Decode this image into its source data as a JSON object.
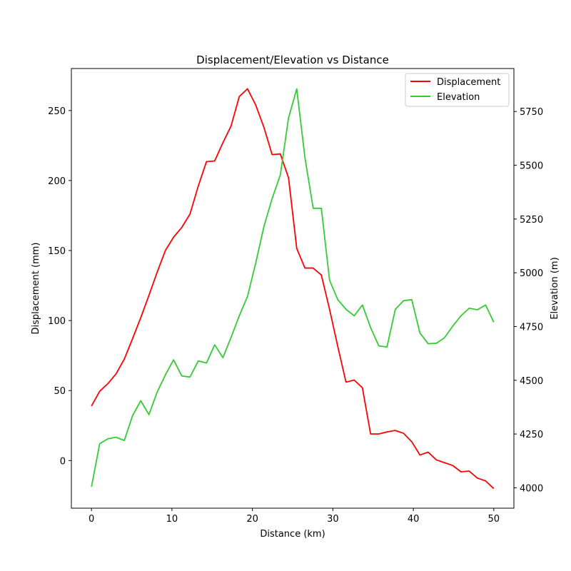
{
  "chart_data": {
    "type": "line",
    "title": "Displacement/Elevation vs Distance",
    "xlabel": "Distance (km)",
    "ylabel_left": "Displacement (mm)",
    "ylabel_right": "Elevation (m)",
    "xlim": [
      -2.5,
      52.5
    ],
    "ylim_left": [
      -34,
      280
    ],
    "ylim_right": [
      3905,
      5950
    ],
    "xticks": [
      0,
      10,
      20,
      30,
      40,
      50
    ],
    "yticks_left": [
      0,
      50,
      100,
      150,
      200,
      250
    ],
    "yticks_right": [
      4000,
      4250,
      4500,
      4750,
      5000,
      5250,
      5500,
      5750
    ],
    "grid": false,
    "legend_position": "top-right",
    "x": [
      0.0,
      1.02,
      2.04,
      3.06,
      4.08,
      5.1,
      6.12,
      7.14,
      8.16,
      9.18,
      10.2,
      11.22,
      12.24,
      13.27,
      14.29,
      15.31,
      16.33,
      17.35,
      18.37,
      19.39,
      20.41,
      21.43,
      22.45,
      23.47,
      24.49,
      25.51,
      26.53,
      27.55,
      28.57,
      29.59,
      30.61,
      31.63,
      32.65,
      33.67,
      34.69,
      35.71,
      36.73,
      37.76,
      38.78,
      39.8,
      40.82,
      41.84,
      42.86,
      43.88,
      44.9,
      45.92,
      46.94,
      47.96,
      48.98,
      50.0
    ],
    "series": [
      {
        "name": "Displacement",
        "axis": "left",
        "color": "#ff0000",
        "values": [
          39,
          49.5,
          55,
          62,
          72.5,
          87,
          102,
          118,
          134.5,
          150,
          159.5,
          166.5,
          176,
          196,
          213.5,
          214,
          227,
          239,
          260,
          265.5,
          254,
          238,
          218.5,
          219,
          202,
          151.5,
          137.5,
          137.5,
          132.5,
          108,
          81.5,
          56,
          57.5,
          52,
          19,
          19,
          20.5,
          21.5,
          19.5,
          13.5,
          4,
          6,
          0.5,
          -1.5,
          -3.5,
          -8,
          -7.5,
          -12.5,
          -14.5,
          -20
        ]
      },
      {
        "name": "Elevation",
        "axis": "right",
        "color": "#33cc33",
        "values": [
          4005,
          4205,
          4228,
          4235,
          4220,
          4335,
          4405,
          4340,
          4445,
          4525,
          4595,
          4520,
          4515,
          4590,
          4580,
          4665,
          4605,
          4700,
          4800,
          4890,
          5045,
          5215,
          5345,
          5455,
          5720,
          5855,
          5535,
          5300,
          5300,
          4965,
          4875,
          4830,
          4800,
          4850,
          4745,
          4660,
          4655,
          4830,
          4870,
          4875,
          4720,
          4670,
          4672,
          4698,
          4752,
          4800,
          4835,
          4828,
          4850,
          4770
        ]
      }
    ]
  }
}
